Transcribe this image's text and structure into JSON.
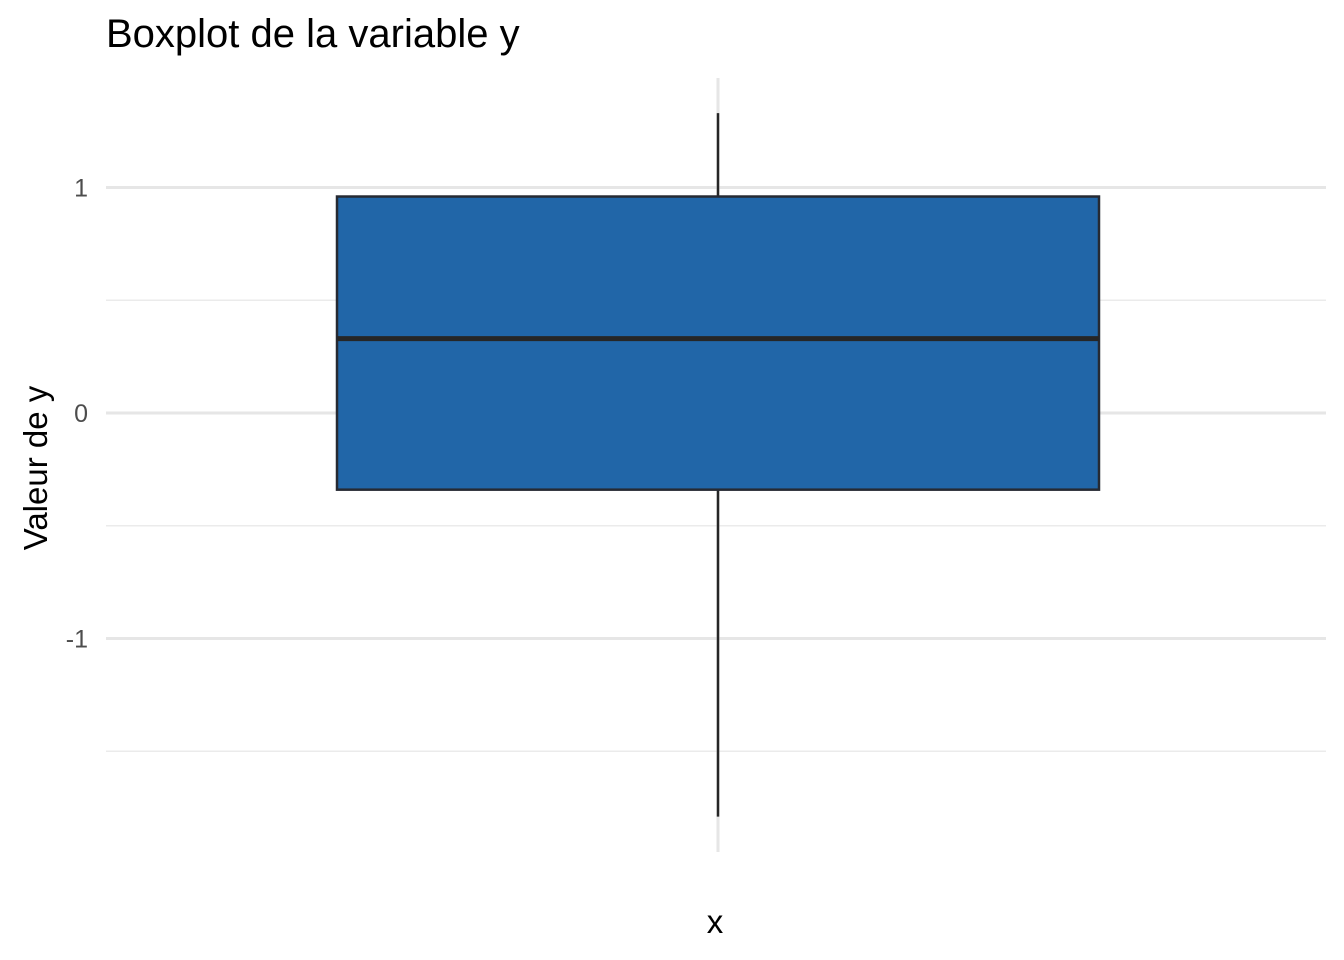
{
  "chart_data": {
    "type": "boxplot",
    "title": "Boxplot de la variable y",
    "xlabel": "x",
    "ylabel": "Valeur de y",
    "ylim": [
      -1.95,
      1.5
    ],
    "yticks": [
      {
        "value": -1,
        "label": "-1"
      },
      {
        "value": 0,
        "label": "0"
      },
      {
        "value": 1,
        "label": "1"
      }
    ],
    "minor_gridlines": [
      -1.5,
      -0.5,
      0.5
    ],
    "grid": true,
    "legend": "none",
    "boxes": [
      {
        "category": "",
        "whisker_low": -1.79,
        "q1": -0.34,
        "median": 0.33,
        "q3": 0.96,
        "whisker_high": 1.33
      }
    ],
    "colors": {
      "box_fill": "#2166a8",
      "box_outline": "#262a33",
      "median": "#262626",
      "whisker": "#262626",
      "grid_major": "#e6e6e6",
      "grid_minor": "#ebebeb"
    }
  }
}
